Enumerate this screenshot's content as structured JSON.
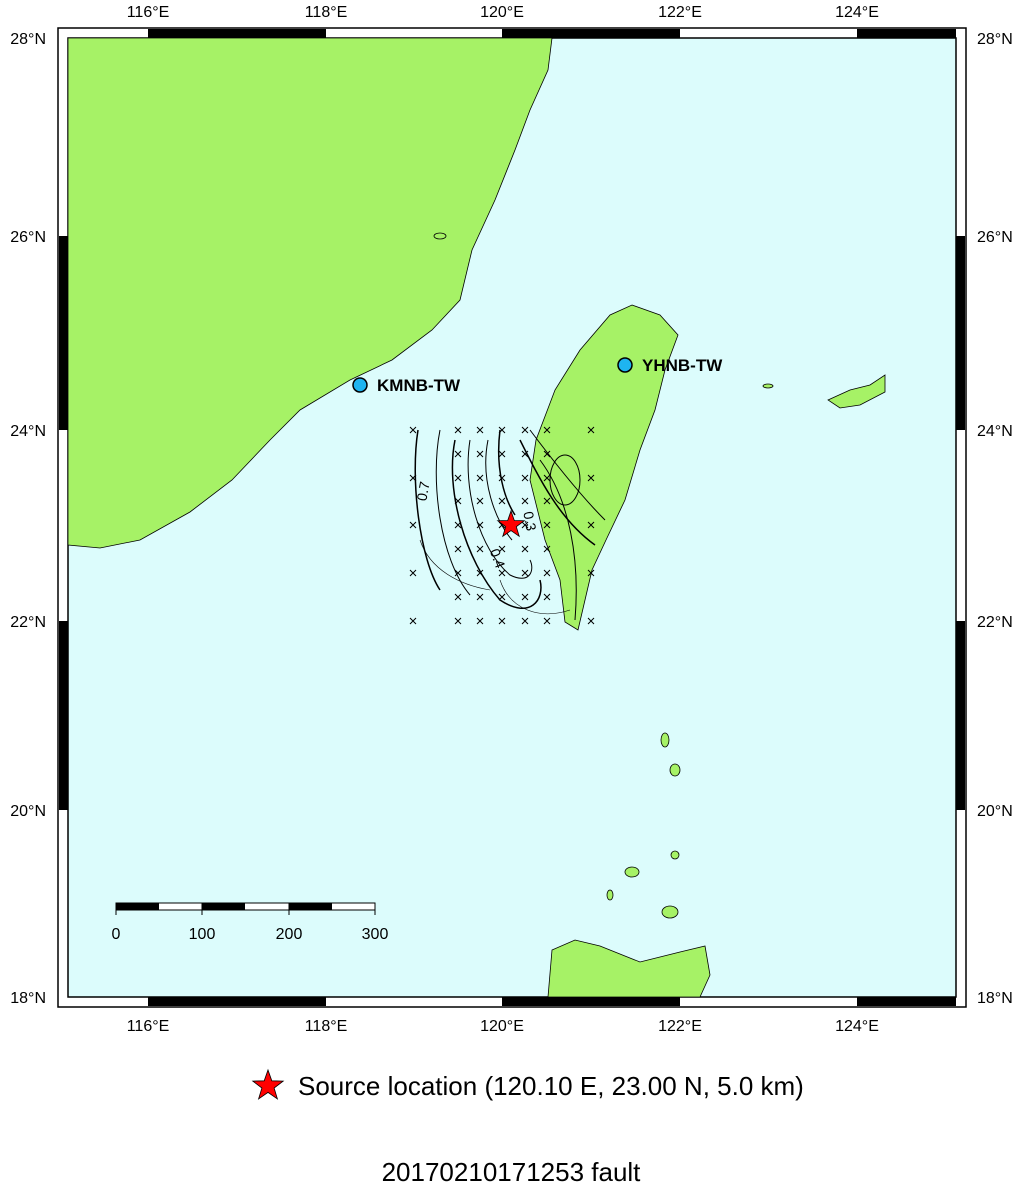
{
  "axes": {
    "top_ticks": [
      "116°E",
      "118°E",
      "120°E",
      "122°E",
      "124°E"
    ],
    "bottom_ticks": [
      "116°E",
      "118°E",
      "120°E",
      "122°E",
      "124°E"
    ],
    "left_ticks": [
      "28°N",
      "26°N",
      "24°N",
      "22°N",
      "20°N",
      "18°N"
    ],
    "right_ticks": [
      "28°N",
      "26°N",
      "24°N",
      "22°N",
      "20°N",
      "18°N"
    ]
  },
  "stations": [
    {
      "label": "KMNB-TW"
    },
    {
      "label": "YHNB-TW"
    }
  ],
  "contour_labels": [
    "0.7",
    "0.4",
    "0.3"
  ],
  "scale_bar": {
    "labels": [
      "0",
      "100",
      "200",
      "300"
    ]
  },
  "legend": {
    "label": "Source location (120.10 E, 23.00 N, 5.0 km)"
  },
  "title": "20170210171253 fault"
}
